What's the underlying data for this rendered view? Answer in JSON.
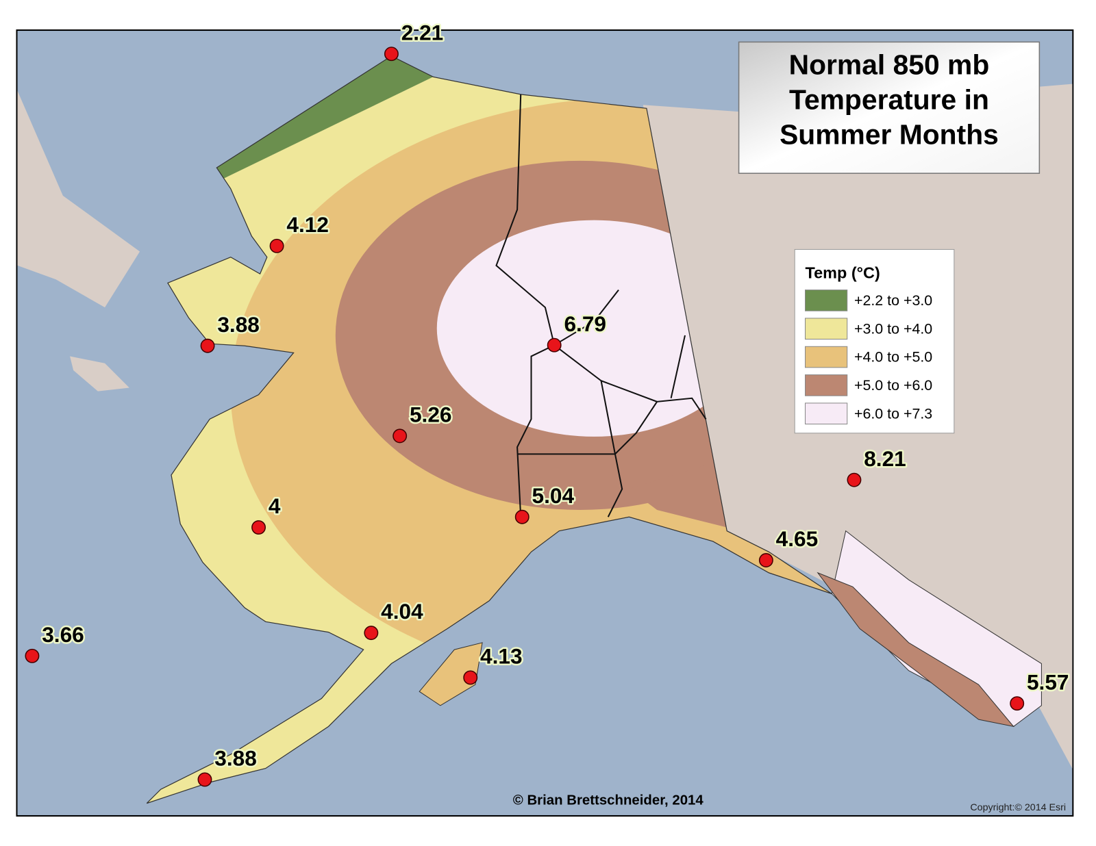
{
  "title": "Normal 850 mb Temperature in Summer Months",
  "legend": {
    "title": "Temp (°C)",
    "items": [
      {
        "label": "+2.2 to +3.0",
        "color": "#6b8f4e"
      },
      {
        "label": "+3.0 to +4.0",
        "color": "#efe79a"
      },
      {
        "label": "+4.0 to +5.0",
        "color": "#e8c27b"
      },
      {
        "label": "+5.0 to +6.0",
        "color": "#bc8772"
      },
      {
        "label": "+6.0 to +7.3",
        "color": "#f7ebf6"
      }
    ]
  },
  "stations": {
    "marker_color": "#e8141a",
    "values": [
      2.21,
      4.12,
      3.88,
      6.79,
      5.26,
      4,
      5.04,
      8.21,
      4.65,
      3.66,
      4.04,
      4.13,
      5.57,
      3.88
    ]
  },
  "credit": "© Brian Brettschneider, 2014",
  "copyright": "Copyright:© 2014 Esri"
}
